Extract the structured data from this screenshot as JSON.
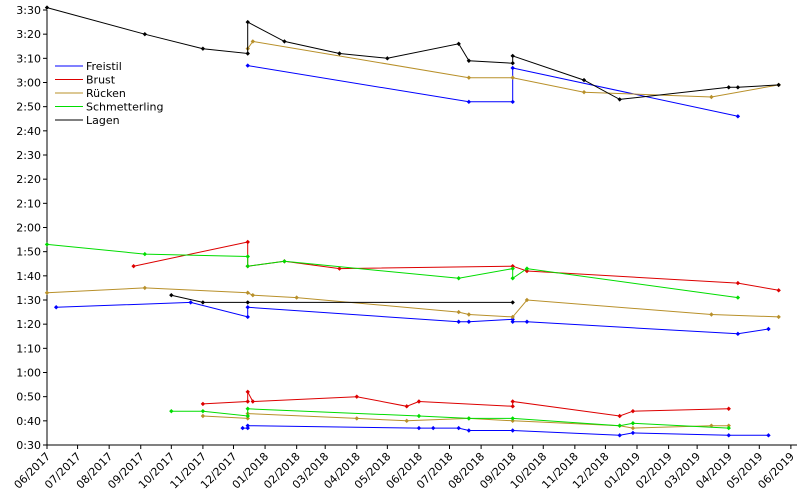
{
  "chart_data": {
    "type": "line",
    "title": "",
    "xlabel": "",
    "ylabel": "",
    "grid": false,
    "legend_position": "top-left",
    "x_range": [
      "2017-06-01",
      "2019-06-07"
    ],
    "y_range_seconds": [
      30,
      210
    ],
    "y_tick_labels": [
      "0:30",
      "0:40",
      "0:50",
      "1:00",
      "1:10",
      "1:20",
      "1:30",
      "1:40",
      "1:50",
      "2:00",
      "2:10",
      "2:20",
      "2:30",
      "2:40",
      "2:50",
      "3:00",
      "3:10",
      "3:20",
      "3:30"
    ],
    "x_tick_labels": [
      "06/2017",
      "07/2017",
      "08/2017",
      "09/2017",
      "10/2017",
      "11/2017",
      "12/2017",
      "01/2018",
      "02/2018",
      "03/2018",
      "04/2018",
      "05/2018",
      "06/2018",
      "07/2018",
      "08/2018",
      "09/2018",
      "10/2018",
      "11/2018",
      "12/2018",
      "01/2019",
      "02/2019",
      "03/2019",
      "04/2019",
      "05/2019",
      "06/2019"
    ],
    "series": [
      {
        "name": "Freistil",
        "color": "#0000ff",
        "segments": [
          [
            [
              "2017-12-15",
              "3:07"
            ],
            [
              "2018-07-20",
              "2:52"
            ],
            [
              "2018-09-01",
              "2:52"
            ],
            [
              "2018-09-01",
              "3:06"
            ],
            [
              "2019-04-10",
              "2:46"
            ]
          ],
          [
            [
              "2017-06-10",
              "1:27"
            ],
            [
              "2017-10-20",
              "1:29"
            ],
            [
              "2017-12-15",
              "1:23"
            ],
            [
              "2017-12-15",
              "1:27"
            ],
            [
              "2018-07-10",
              "1:21"
            ],
            [
              "2018-07-20",
              "1:21"
            ],
            [
              "2018-09-01",
              "1:22"
            ],
            [
              "2018-09-01",
              "1:21"
            ],
            [
              "2018-09-15",
              "1:21"
            ],
            [
              "2019-04-10",
              "1:16"
            ],
            [
              "2019-05-10",
              "1:18"
            ]
          ],
          [
            [
              "2017-12-10",
              "0:37"
            ],
            [
              "2017-12-15",
              "0:37"
            ],
            [
              "2017-12-15",
              "0:38"
            ],
            [
              "2018-06-01",
              "0:37"
            ],
            [
              "2018-06-15",
              "0:37"
            ],
            [
              "2018-07-10",
              "0:37"
            ],
            [
              "2018-07-20",
              "0:36"
            ],
            [
              "2018-09-01",
              "0:36"
            ],
            [
              "2018-12-15",
              "0:34"
            ],
            [
              "2018-12-28",
              "0:35"
            ],
            [
              "2019-04-01",
              "0:34"
            ],
            [
              "2019-05-10",
              "0:34"
            ]
          ]
        ]
      },
      {
        "name": "Brust",
        "color": "#dd0000",
        "segments": [
          [
            [
              "2017-08-25",
              "1:44"
            ],
            [
              "2017-12-15",
              "1:54"
            ],
            [
              "2017-12-15",
              "1:44"
            ],
            [
              "2018-01-20",
              "1:46"
            ],
            [
              "2018-03-15",
              "1:43"
            ],
            [
              "2018-09-01",
              "1:44"
            ],
            [
              "2018-09-15",
              "1:42"
            ],
            [
              "2019-04-10",
              "1:37"
            ],
            [
              "2019-05-20",
              "1:34"
            ]
          ],
          [
            [
              "2017-11-01",
              "0:47"
            ],
            [
              "2017-12-15",
              "0:48"
            ],
            [
              "2017-12-15",
              "0:52"
            ],
            [
              "2017-12-20",
              "0:48"
            ],
            [
              "2018-04-01",
              "0:50"
            ],
            [
              "2018-05-20",
              "0:46"
            ],
            [
              "2018-06-01",
              "0:48"
            ],
            [
              "2018-09-01",
              "0:46"
            ],
            [
              "2018-09-01",
              "0:48"
            ],
            [
              "2018-12-15",
              "0:42"
            ],
            [
              "2018-12-28",
              "0:44"
            ],
            [
              "2019-04-01",
              "0:45"
            ]
          ]
        ]
      },
      {
        "name": "Rücken",
        "color": "#b8902a",
        "segments": [
          [
            [
              "2017-12-15",
              "3:14"
            ],
            [
              "2017-12-20",
              "3:17"
            ],
            [
              "2018-07-20",
              "3:02"
            ],
            [
              "2018-09-01",
              "3:02"
            ],
            [
              "2018-11-10",
              "2:56"
            ],
            [
              "2019-03-15",
              "2:54"
            ],
            [
              "2019-05-20",
              "2:59"
            ]
          ],
          [
            [
              "2017-06-01",
              "1:33"
            ],
            [
              "2017-09-05",
              "1:35"
            ],
            [
              "2017-12-15",
              "1:33"
            ],
            [
              "2017-12-20",
              "1:32"
            ],
            [
              "2018-02-01",
              "1:31"
            ],
            [
              "2018-07-10",
              "1:25"
            ],
            [
              "2018-07-20",
              "1:24"
            ],
            [
              "2018-09-01",
              "1:23"
            ],
            [
              "2018-09-15",
              "1:30"
            ],
            [
              "2019-03-15",
              "1:24"
            ],
            [
              "2019-05-20",
              "1:23"
            ]
          ],
          [
            [
              "2017-11-01",
              "0:42"
            ],
            [
              "2017-12-15",
              "0:41"
            ],
            [
              "2017-12-15",
              "0:43"
            ],
            [
              "2018-04-01",
              "0:41"
            ],
            [
              "2018-05-20",
              "0:40"
            ],
            [
              "2018-07-20",
              "0:41"
            ],
            [
              "2018-09-01",
              "0:40"
            ],
            [
              "2018-12-15",
              "0:38"
            ],
            [
              "2018-12-28",
              "0:37"
            ],
            [
              "2019-03-15",
              "0:38"
            ],
            [
              "2019-04-01",
              "0:38"
            ]
          ]
        ]
      },
      {
        "name": "Schmetterling",
        "color": "#00dd00",
        "segments": [
          [
            [
              "2017-06-01",
              "1:53"
            ],
            [
              "2017-09-05",
              "1:49"
            ],
            [
              "2017-12-15",
              "1:48"
            ],
            [
              "2017-12-15",
              "1:44"
            ],
            [
              "2018-01-20",
              "1:46"
            ],
            [
              "2018-07-10",
              "1:39"
            ],
            [
              "2018-09-01",
              "1:43"
            ],
            [
              "2018-09-01",
              "1:39"
            ],
            [
              "2018-09-15",
              "1:43"
            ],
            [
              "2019-04-10",
              "1:31"
            ]
          ],
          [
            [
              "2017-10-01",
              "0:44"
            ],
            [
              "2017-11-01",
              "0:44"
            ],
            [
              "2017-12-15",
              "0:42"
            ],
            [
              "2017-12-15",
              "0:45"
            ],
            [
              "2018-06-01",
              "0:42"
            ],
            [
              "2018-07-20",
              "0:41"
            ],
            [
              "2018-09-01",
              "0:41"
            ],
            [
              "2018-12-15",
              "0:38"
            ],
            [
              "2018-12-28",
              "0:39"
            ],
            [
              "2019-04-01",
              "0:37"
            ]
          ]
        ]
      },
      {
        "name": "Lagen",
        "color": "#000000",
        "segments": [
          [
            [
              "2017-06-01",
              "3:31"
            ],
            [
              "2017-09-05",
              "3:20"
            ],
            [
              "2017-11-01",
              "3:14"
            ],
            [
              "2017-12-15",
              "3:12"
            ],
            [
              "2017-12-15",
              "3:25"
            ],
            [
              "2018-01-20",
              "3:17"
            ],
            [
              "2018-03-15",
              "3:12"
            ],
            [
              "2018-05-01",
              "3:10"
            ],
            [
              "2018-07-10",
              "3:16"
            ],
            [
              "2018-07-20",
              "3:09"
            ],
            [
              "2018-09-01",
              "3:08"
            ],
            [
              "2018-09-01",
              "3:11"
            ],
            [
              "2018-11-10",
              "3:01"
            ],
            [
              "2018-12-15",
              "2:53"
            ],
            [
              "2019-04-01",
              "2:58"
            ],
            [
              "2019-04-10",
              "2:58"
            ],
            [
              "2019-05-20",
              "2:59"
            ]
          ],
          [
            [
              "2017-10-01",
              "1:32"
            ],
            [
              "2017-11-01",
              "1:29"
            ],
            [
              "2017-12-15",
              "1:29"
            ],
            [
              "2018-09-01",
              "1:29"
            ]
          ]
        ]
      }
    ]
  }
}
